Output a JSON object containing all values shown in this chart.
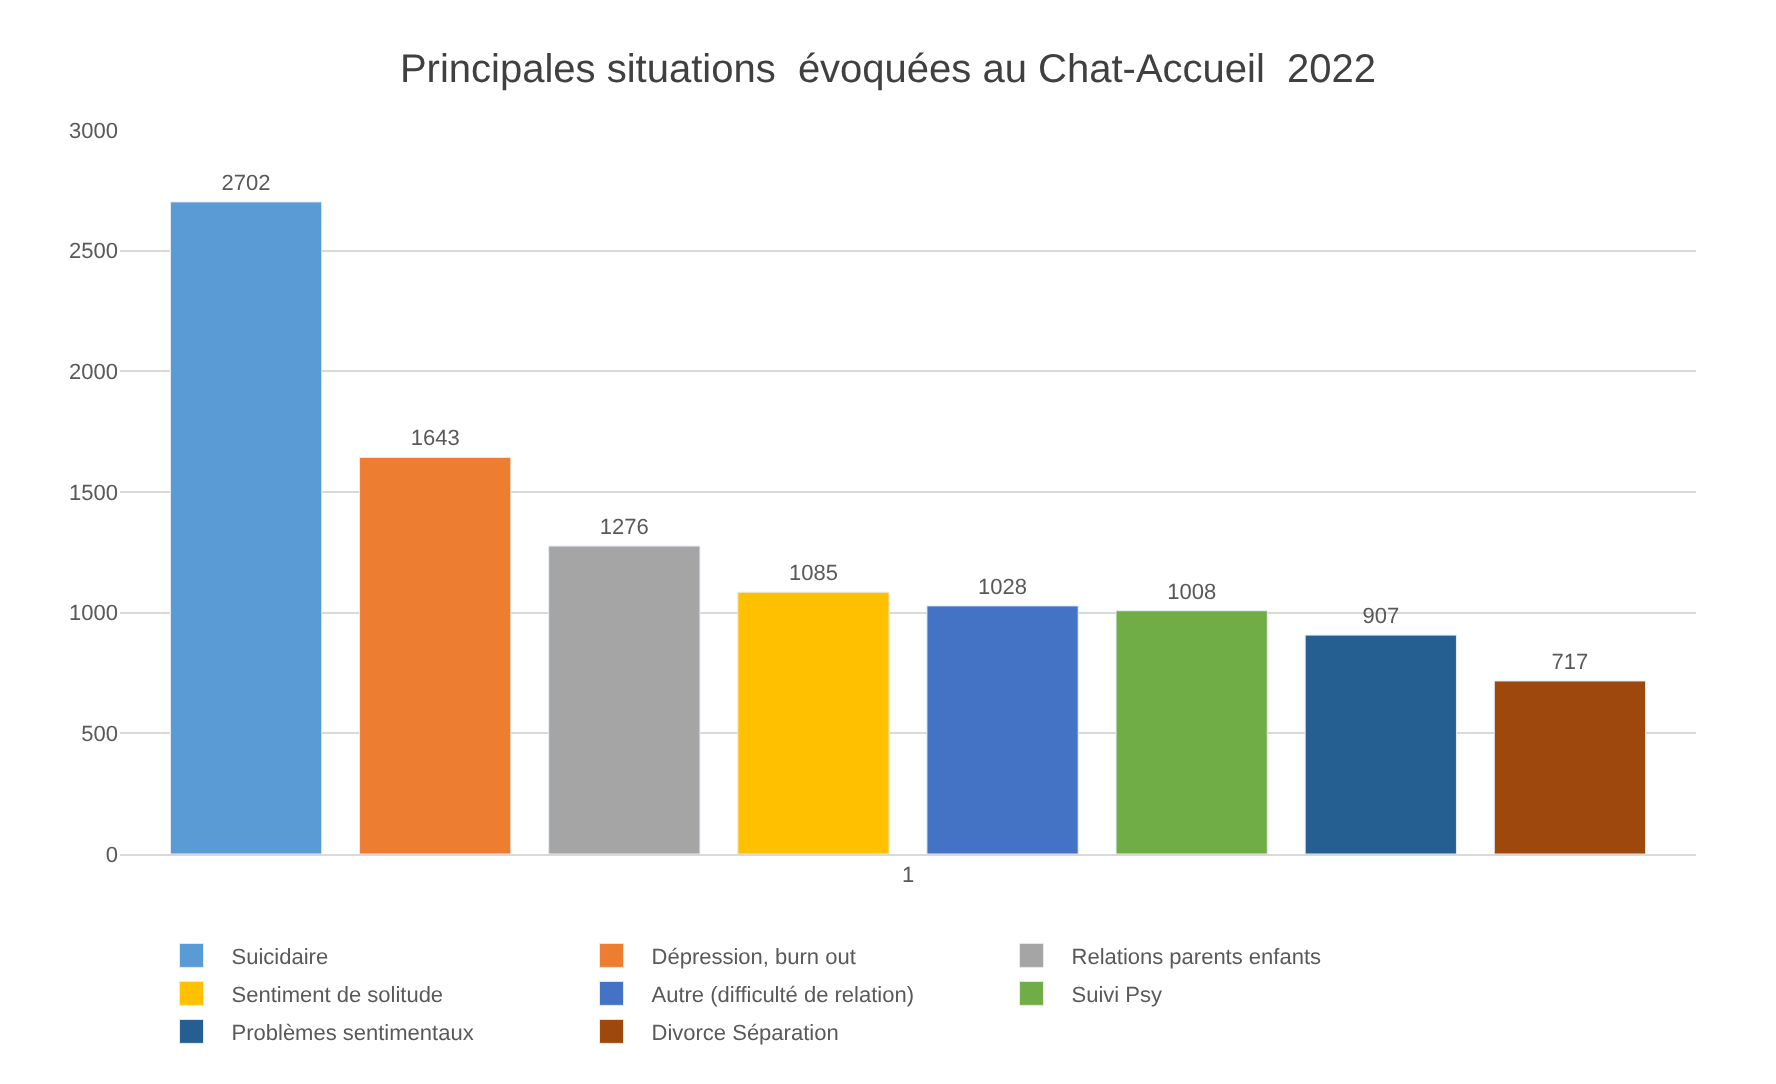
{
  "chart_data": {
    "type": "bar",
    "title": "Principales situations  évoquées au Chat-Accueil  2022",
    "categories": [
      "1"
    ],
    "series": [
      {
        "name": "Suicidaire",
        "color": "#5b9bd5",
        "values": [
          2702
        ]
      },
      {
        "name": "Dépression, burn out",
        "color": "#ed7d31",
        "values": [
          1643
        ]
      },
      {
        "name": "Relations parents enfants",
        "color": "#a5a5a5",
        "values": [
          1276
        ]
      },
      {
        "name": "Sentiment de solitude",
        "color": "#ffc000",
        "values": [
          1085
        ]
      },
      {
        "name": "Autre (difficulté de relation)",
        "color": "#4472c4",
        "values": [
          1028
        ]
      },
      {
        "name": "Suivi Psy",
        "color": "#70ad47",
        "values": [
          1008
        ]
      },
      {
        "name": "Problèmes sentimentaux",
        "color": "#255e91",
        "values": [
          907
        ]
      },
      {
        "name": "Divorce Séparation",
        "color": "#9e480e",
        "values": [
          717
        ]
      }
    ],
    "ylim": [
      0,
      3000
    ],
    "yticks": [
      0,
      500,
      1000,
      1500,
      2000,
      2500,
      3000
    ],
    "grid": "y",
    "legend": "bottom",
    "data_labels": true
  }
}
